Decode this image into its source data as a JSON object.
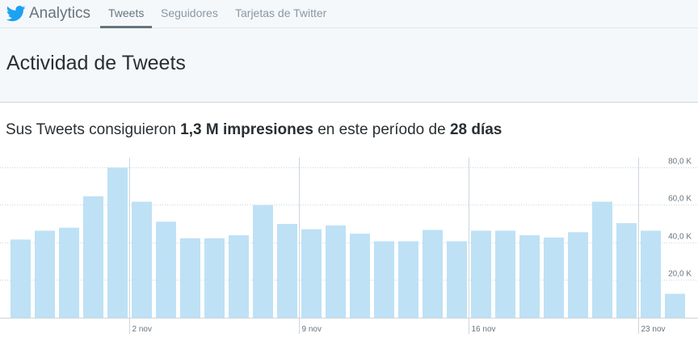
{
  "nav": {
    "brand": "Analytics",
    "tabs": [
      {
        "label": "Tweets",
        "active": true
      },
      {
        "label": "Seguidores",
        "active": false
      },
      {
        "label": "Tarjetas de Twitter",
        "active": false
      }
    ]
  },
  "header": {
    "title": "Actividad de Tweets"
  },
  "summary": {
    "prefix": "Sus Tweets consiguieron",
    "impressions": "1,3 M impresiones",
    "middle": "en este período de",
    "period": "28 días"
  },
  "colors": {
    "bar": "#bee1f5",
    "grid": "#ccd6dd",
    "accent": "#1da1f2"
  },
  "chart_data": {
    "type": "bar",
    "title": "",
    "xlabel": "",
    "ylabel": "",
    "ylim": [
      0,
      85
    ],
    "y_ticks": [
      {
        "value": 20,
        "label": "20,0 K"
      },
      {
        "value": 40,
        "label": "40,0 K"
      },
      {
        "value": 60,
        "label": "60,0 K"
      },
      {
        "value": 80,
        "label": "80,0 K"
      }
    ],
    "x_ticks": [
      {
        "index": 5,
        "label": "2 nov"
      },
      {
        "index": 12,
        "label": "9 nov"
      },
      {
        "index": 19,
        "label": "16 nov"
      },
      {
        "index": 26,
        "label": "23 nov"
      }
    ],
    "values": [
      41.5,
      46.2,
      47.8,
      64.5,
      79.7,
      61.6,
      51.0,
      42.2,
      42.2,
      43.8,
      59.8,
      49.8,
      47.0,
      49.0,
      44.6,
      40.6,
      40.6,
      46.6,
      40.6,
      46.2,
      46.2,
      43.8,
      42.6,
      45.4,
      61.6,
      50.2,
      46.2,
      12.7
    ],
    "unit": "K"
  }
}
